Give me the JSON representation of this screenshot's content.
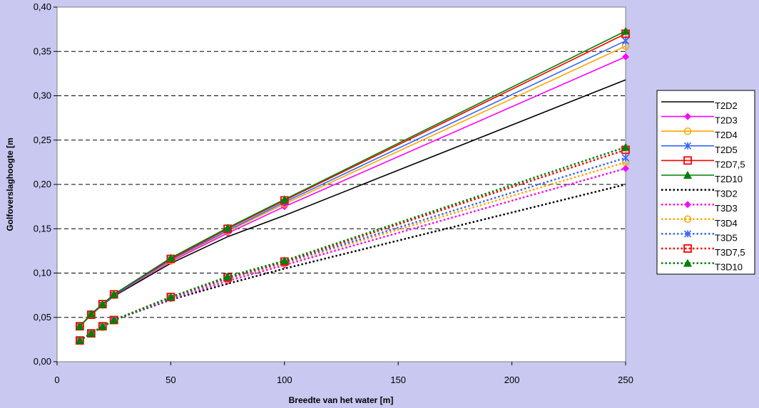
{
  "chart_data": {
    "type": "line",
    "title": "",
    "xlabel": "Breedte van het water [m]",
    "ylabel": "Golfoverslaghoogte [m",
    "xlim": [
      0,
      250
    ],
    "ylim": [
      0,
      0.4
    ],
    "x_ticks": [
      "0",
      "50",
      "100",
      "150",
      "200",
      "250"
    ],
    "y_ticks": [
      "0,00",
      "0,05",
      "0,10",
      "0,15",
      "0,20",
      "0,25",
      "0,30",
      "0,35",
      "0,40"
    ],
    "grid": "horizontal dashed",
    "legend_position": "right",
    "series": [
      {
        "name": "T2D2",
        "color": "#000000",
        "dash": "solid",
        "marker": "none",
        "x": [
          10,
          15,
          20,
          25,
          50,
          75,
          100,
          250
        ],
        "y": [
          0.04,
          0.053,
          0.064,
          0.074,
          0.111,
          0.141,
          0.165,
          0.318
        ]
      },
      {
        "name": "T2D3",
        "color": "#ff00ff",
        "dash": "solid",
        "marker": "diamond",
        "x": [
          10,
          15,
          20,
          25,
          50,
          75,
          100,
          250
        ],
        "y": [
          0.04,
          0.053,
          0.064,
          0.075,
          0.113,
          0.145,
          0.175,
          0.344
        ]
      },
      {
        "name": "T2D4",
        "color": "#ffa500",
        "dash": "solid",
        "marker": "circle",
        "x": [
          10,
          15,
          20,
          25,
          50,
          75,
          100,
          250
        ],
        "y": [
          0.04,
          0.053,
          0.064,
          0.075,
          0.114,
          0.147,
          0.178,
          0.356
        ]
      },
      {
        "name": "T2D5",
        "color": "#3366ff",
        "dash": "solid",
        "marker": "star",
        "x": [
          10,
          15,
          20,
          25,
          50,
          75,
          100,
          250
        ],
        "y": [
          0.04,
          0.053,
          0.064,
          0.075,
          0.115,
          0.148,
          0.18,
          0.362
        ]
      },
      {
        "name": "T2D7,5",
        "color": "#ff0000",
        "dash": "solid",
        "marker": "square",
        "x": [
          10,
          15,
          20,
          25,
          50,
          75,
          100,
          250
        ],
        "y": [
          0.04,
          0.053,
          0.065,
          0.076,
          0.116,
          0.15,
          0.182,
          0.37
        ]
      },
      {
        "name": "T2D10",
        "color": "#008000",
        "dash": "solid",
        "marker": "triangle",
        "x": [
          10,
          15,
          20,
          25,
          50,
          75,
          100,
          250
        ],
        "y": [
          0.04,
          0.054,
          0.065,
          0.076,
          0.117,
          0.151,
          0.183,
          0.373
        ]
      },
      {
        "name": "T3D2",
        "color": "#000000",
        "dash": "dotted",
        "marker": "none",
        "x": [
          10,
          15,
          20,
          25,
          50,
          75,
          100,
          250
        ],
        "y": [
          0.024,
          0.032,
          0.039,
          0.047,
          0.07,
          0.088,
          0.105,
          0.2
        ]
      },
      {
        "name": "T3D3",
        "color": "#ff00ff",
        "dash": "dotted",
        "marker": "diamond",
        "x": [
          10,
          15,
          20,
          25,
          50,
          75,
          100,
          250
        ],
        "y": [
          0.024,
          0.032,
          0.039,
          0.047,
          0.071,
          0.091,
          0.109,
          0.218
        ]
      },
      {
        "name": "T3D4",
        "color": "#ffa500",
        "dash": "dotted",
        "marker": "circle",
        "x": [
          10,
          15,
          20,
          25,
          50,
          75,
          100,
          250
        ],
        "y": [
          0.024,
          0.032,
          0.039,
          0.047,
          0.072,
          0.093,
          0.111,
          0.225
        ]
      },
      {
        "name": "T3D5",
        "color": "#3366ff",
        "dash": "dotted",
        "marker": "star",
        "x": [
          10,
          15,
          20,
          25,
          50,
          75,
          100,
          250
        ],
        "y": [
          0.024,
          0.032,
          0.04,
          0.047,
          0.072,
          0.094,
          0.112,
          0.23
        ]
      },
      {
        "name": "T3D7,5",
        "color": "#ff0000",
        "dash": "dotted",
        "marker": "square",
        "x": [
          10,
          15,
          20,
          25,
          50,
          75,
          100,
          250
        ],
        "y": [
          0.024,
          0.032,
          0.04,
          0.047,
          0.073,
          0.095,
          0.113,
          0.239
        ]
      },
      {
        "name": "T3D10",
        "color": "#008000",
        "dash": "dotted",
        "marker": "triangle",
        "x": [
          10,
          15,
          20,
          25,
          50,
          75,
          100,
          250
        ],
        "y": [
          0.024,
          0.032,
          0.04,
          0.047,
          0.073,
          0.096,
          0.114,
          0.242
        ]
      }
    ]
  }
}
